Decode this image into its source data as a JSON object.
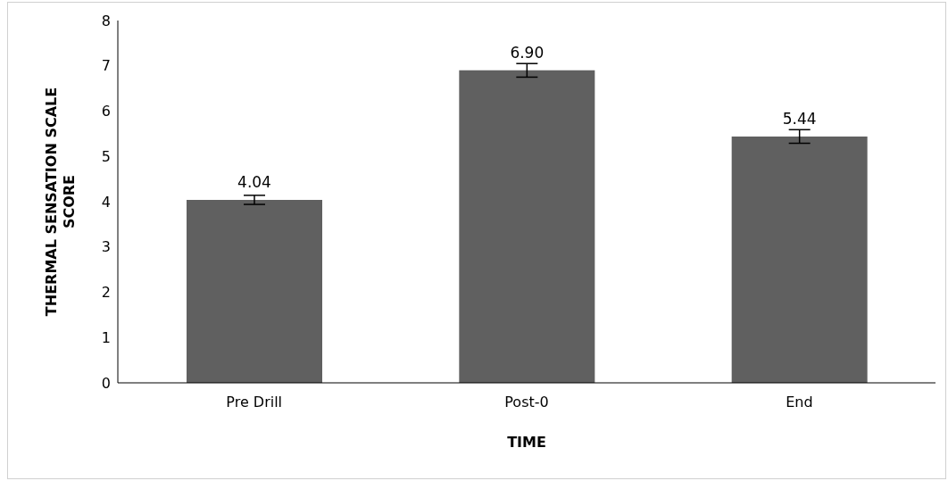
{
  "chart_data": {
    "type": "bar",
    "categories": [
      "Pre Drill",
      "Post-0",
      "End"
    ],
    "values": [
      4.04,
      6.9,
      5.44
    ],
    "errors": [
      0.1,
      0.15,
      0.15
    ],
    "color": "#606060",
    "xlabel": "TIME",
    "ylabel": "THERMAL SENSATION SCALE SCORE",
    "ylim": [
      0,
      8
    ],
    "yticks": [
      0,
      1,
      2,
      3,
      4,
      5,
      6,
      7,
      8
    ],
    "value_labels": [
      "4.04",
      "6.90",
      "5.44"
    ],
    "grid": false,
    "legend": false
  }
}
